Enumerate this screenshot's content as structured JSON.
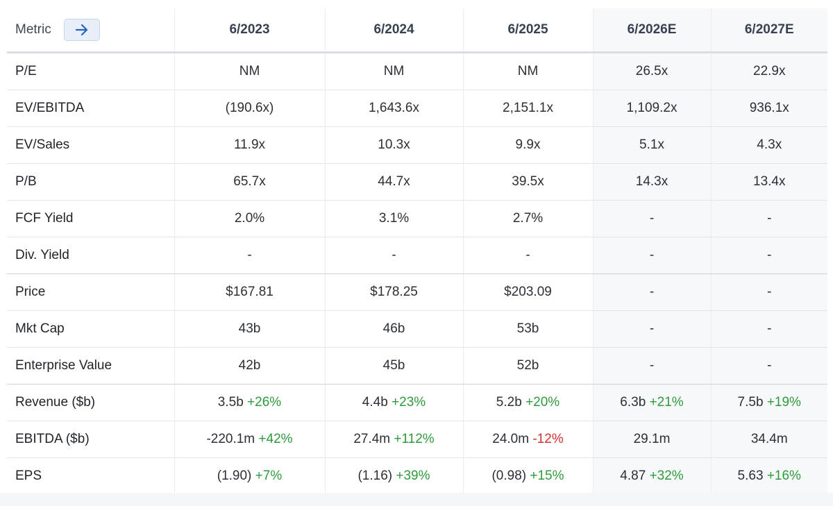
{
  "header": {
    "metric_label": "Metric",
    "arrow_icon": "arrow-right-icon",
    "columns": [
      "6/2023",
      "6/2024",
      "6/2025",
      "6/2026E",
      "6/2027E"
    ]
  },
  "colors": {
    "positive": "#2f9a3c",
    "negative": "#d3302f",
    "accent": "#2563c9"
  },
  "rows": [
    {
      "label": "P/E",
      "cells": [
        {
          "v": "NM",
          "c": ""
        },
        {
          "v": "NM",
          "c": ""
        },
        {
          "v": "NM",
          "c": ""
        },
        {
          "v": "26.5x",
          "c": ""
        },
        {
          "v": "22.9x",
          "c": ""
        }
      ]
    },
    {
      "label": "EV/EBITDA",
      "cells": [
        {
          "v": "(190.6x)",
          "c": ""
        },
        {
          "v": "1,643.6x",
          "c": ""
        },
        {
          "v": "2,151.1x",
          "c": ""
        },
        {
          "v": "1,109.2x",
          "c": ""
        },
        {
          "v": "936.1x",
          "c": ""
        }
      ]
    },
    {
      "label": "EV/Sales",
      "cells": [
        {
          "v": "11.9x",
          "c": ""
        },
        {
          "v": "10.3x",
          "c": ""
        },
        {
          "v": "9.9x",
          "c": ""
        },
        {
          "v": "5.1x",
          "c": ""
        },
        {
          "v": "4.3x",
          "c": ""
        }
      ]
    },
    {
      "label": "P/B",
      "cells": [
        {
          "v": "65.7x",
          "c": ""
        },
        {
          "v": "44.7x",
          "c": ""
        },
        {
          "v": "39.5x",
          "c": ""
        },
        {
          "v": "14.3x",
          "c": ""
        },
        {
          "v": "13.4x",
          "c": ""
        }
      ]
    },
    {
      "label": "FCF Yield",
      "cells": [
        {
          "v": "2.0%",
          "c": ""
        },
        {
          "v": "3.1%",
          "c": ""
        },
        {
          "v": "2.7%",
          "c": ""
        },
        {
          "v": "-",
          "c": ""
        },
        {
          "v": "-",
          "c": ""
        }
      ]
    },
    {
      "label": "Div. Yield",
      "cells": [
        {
          "v": "-",
          "c": ""
        },
        {
          "v": "-",
          "c": ""
        },
        {
          "v": "-",
          "c": ""
        },
        {
          "v": "-",
          "c": ""
        },
        {
          "v": "-",
          "c": ""
        }
      ]
    },
    {
      "label": "Price",
      "cells": [
        {
          "v": "$167.81",
          "c": ""
        },
        {
          "v": "$178.25",
          "c": ""
        },
        {
          "v": "$203.09",
          "c": ""
        },
        {
          "v": "-",
          "c": ""
        },
        {
          "v": "-",
          "c": ""
        }
      ]
    },
    {
      "label": "Mkt Cap",
      "cells": [
        {
          "v": "43b",
          "c": ""
        },
        {
          "v": "46b",
          "c": ""
        },
        {
          "v": "53b",
          "c": ""
        },
        {
          "v": "-",
          "c": ""
        },
        {
          "v": "-",
          "c": ""
        }
      ]
    },
    {
      "label": "Enterprise Value",
      "cells": [
        {
          "v": "42b",
          "c": ""
        },
        {
          "v": "45b",
          "c": ""
        },
        {
          "v": "52b",
          "c": ""
        },
        {
          "v": "-",
          "c": ""
        },
        {
          "v": "-",
          "c": ""
        }
      ]
    },
    {
      "label": "Revenue ($b)",
      "cells": [
        {
          "v": "3.5b",
          "c": "+26%"
        },
        {
          "v": "4.4b",
          "c": "+23%"
        },
        {
          "v": "5.2b",
          "c": "+20%"
        },
        {
          "v": "6.3b",
          "c": "+21%"
        },
        {
          "v": "7.5b",
          "c": "+19%"
        }
      ]
    },
    {
      "label": "EBITDA ($b)",
      "cells": [
        {
          "v": "-220.1m",
          "c": "+42%"
        },
        {
          "v": "27.4m",
          "c": "+112%"
        },
        {
          "v": "24.0m",
          "c": "-12%"
        },
        {
          "v": "29.1m",
          "c": ""
        },
        {
          "v": "34.4m",
          "c": ""
        }
      ]
    },
    {
      "label": "EPS",
      "cells": [
        {
          "v": "(1.90)",
          "c": "+7%"
        },
        {
          "v": "(1.16)",
          "c": "+39%"
        },
        {
          "v": "(0.98)",
          "c": "+15%"
        },
        {
          "v": "4.87",
          "c": "+32%"
        },
        {
          "v": "5.63",
          "c": "+16%"
        }
      ]
    }
  ]
}
